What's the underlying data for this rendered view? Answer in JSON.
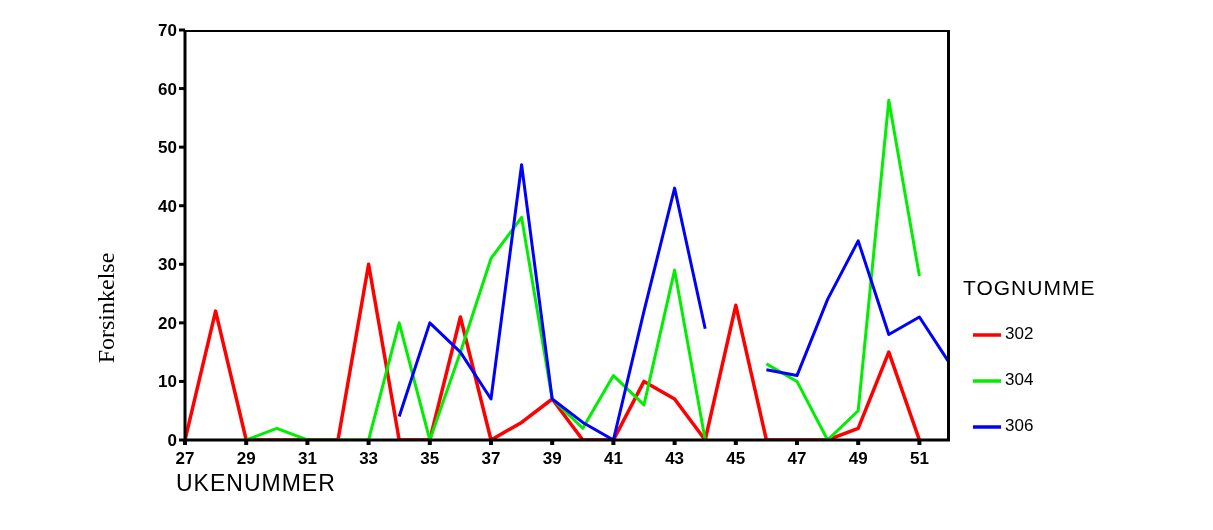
{
  "chart_data": {
    "type": "line",
    "xlabel": "UKENUMMER",
    "ylabel": "Forsinkelse",
    "legend_title": "TOGNUMME",
    "legend": "right",
    "grid": false,
    "marker": "none",
    "x": [
      27,
      28,
      29,
      30,
      31,
      32,
      33,
      34,
      35,
      36,
      37,
      38,
      39,
      40,
      41,
      42,
      43,
      44,
      45,
      46,
      47,
      48,
      49,
      50,
      51,
      52
    ],
    "xlim": [
      27,
      52
    ],
    "xticks": [
      27,
      29,
      31,
      33,
      35,
      37,
      39,
      41,
      43,
      45,
      47,
      49,
      51
    ],
    "ylim": [
      0,
      70
    ],
    "yticks": [
      0,
      10,
      20,
      30,
      40,
      50,
      60,
      70
    ],
    "series": [
      {
        "name": "302",
        "color": "#ff0000",
        "values": [
          0,
          22,
          0,
          0,
          0,
          0,
          30,
          0,
          0,
          21,
          0,
          3,
          7,
          0,
          0,
          10,
          7,
          0,
          23,
          0,
          0,
          0,
          2,
          15,
          0,
          null
        ]
      },
      {
        "name": "304",
        "color": "#00ee00",
        "values": [
          null,
          null,
          0,
          2,
          0,
          0,
          0,
          20,
          0,
          15,
          31,
          38,
          7,
          2,
          11,
          6,
          29,
          0,
          null,
          13,
          10,
          0,
          5,
          58,
          28,
          null
        ]
      },
      {
        "name": "306",
        "color": "#0000ff",
        "values": [
          null,
          null,
          null,
          null,
          null,
          null,
          null,
          4,
          20,
          15,
          7,
          47,
          7,
          3,
          0,
          22,
          43,
          19,
          null,
          12,
          11,
          24,
          34,
          18,
          21,
          13
        ]
      }
    ]
  }
}
